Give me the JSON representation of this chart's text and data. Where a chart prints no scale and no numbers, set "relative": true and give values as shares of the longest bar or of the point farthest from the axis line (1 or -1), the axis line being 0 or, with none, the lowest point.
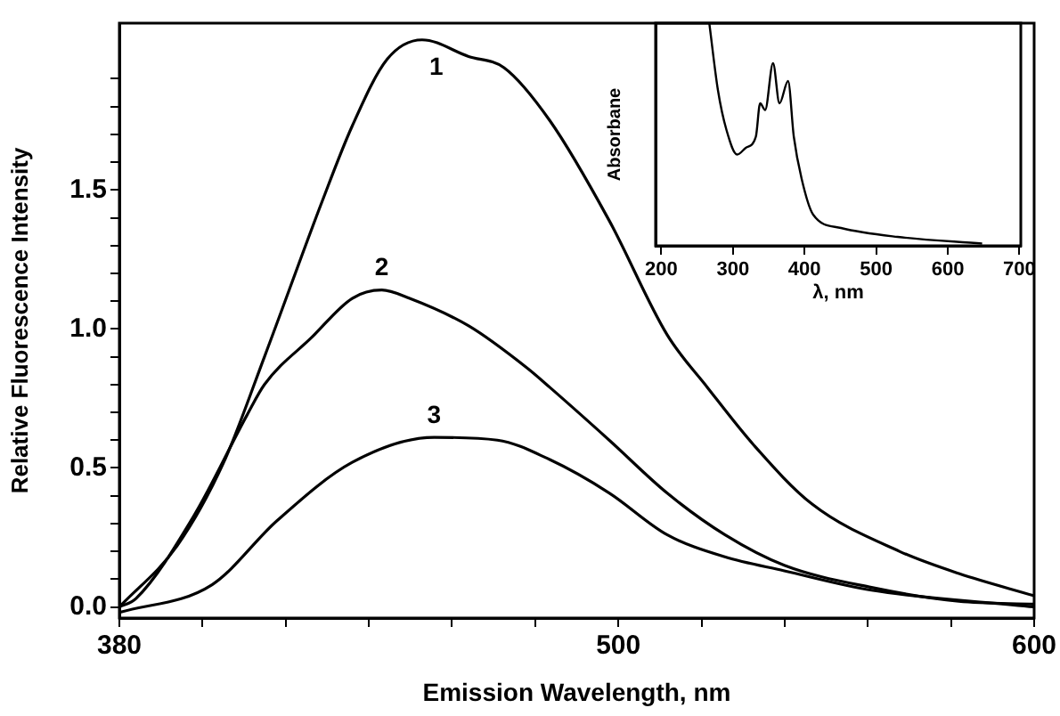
{
  "chart_data": [
    {
      "type": "line",
      "xlabel": "Emission Wavelength, nm",
      "ylabel": "Relative Fluorescence Intensity",
      "xlim": [
        380,
        600
      ],
      "ylim": [
        -0.04,
        2.1
      ],
      "xticks": [
        380,
        {
          "value": 400,
          "label": null
        },
        {
          "value": 420,
          "label": null
        },
        {
          "value": 440,
          "label": null
        },
        {
          "value": 460,
          "label": null
        },
        {
          "value": 480,
          "label": null
        },
        500,
        {
          "value": 520,
          "label": null
        },
        {
          "value": 540,
          "label": null
        },
        {
          "value": 560,
          "label": null
        },
        {
          "value": 580,
          "label": null
        },
        600
      ],
      "yticks": [
        {
          "value": 0,
          "label": "0.0"
        },
        {
          "value": 0.1,
          "label": null
        },
        {
          "value": 0.2,
          "label": null
        },
        {
          "value": 0.3,
          "label": null
        },
        {
          "value": 0.4,
          "label": null
        },
        0.5,
        {
          "value": 0.6,
          "label": null
        },
        {
          "value": 0.7,
          "label": null
        },
        {
          "value": 0.8,
          "label": null
        },
        {
          "value": 0.9,
          "label": null
        },
        {
          "value": 1,
          "label": "1.0"
        },
        {
          "value": 1.1,
          "label": null
        },
        {
          "value": 1.2,
          "label": null
        },
        {
          "value": 1.3,
          "label": null
        },
        {
          "value": 1.4,
          "label": null
        },
        1.5,
        {
          "value": 1.6,
          "label": null
        },
        {
          "value": 1.7,
          "label": null
        },
        {
          "value": 1.8,
          "label": null
        },
        {
          "value": 1.9,
          "label": null
        }
      ],
      "series": [
        {
          "name": "1",
          "color": "#000000",
          "x": [
            380,
            393.9,
            405.1,
            414.9,
            428.8,
            436,
            444.4,
            452.8,
            464,
            472.5,
            483.5,
            497.8,
            511.7,
            521.4,
            532.7,
            546.6,
            567.6,
            581.9,
            600
          ],
          "values": [
            0,
            0.22,
            0.52,
            0.9,
            1.46,
            1.73,
            1.97,
            2.04,
            1.98,
            1.94,
            1.75,
            1.39,
            0.98,
            0.79,
            0.58,
            0.37,
            0.2,
            0.12,
            0.04
          ]
        },
        {
          "name": "2",
          "color": "#000000",
          "x": [
            380,
            384,
            398,
            410.7,
            414.9,
            426.3,
            436,
            443.1,
            449.8,
            464.1,
            478,
            483.5,
            497.8,
            511.7,
            525.6,
            539.9,
            560.9,
            581.9,
            600
          ],
          "values": [
            0,
            0.03,
            0.33,
            0.69,
            0.8,
            0.97,
            1.11,
            1.14,
            1.11,
            1.01,
            0.86,
            0.79,
            0.6,
            0.41,
            0.26,
            0.15,
            0.07,
            0.02,
            0.01
          ]
        },
        {
          "name": "3",
          "color": "#000000",
          "x": [
            380,
            402.3,
            417.9,
            436,
            455.7,
            470.9,
            483.5,
            497.8,
            511.7,
            525.6,
            539.9,
            560.9,
            600
          ],
          "values": [
            -0.02,
            0.08,
            0.31,
            0.52,
            0.61,
            0.6,
            0.53,
            0.41,
            0.26,
            0.18,
            0.13,
            0.06,
            0
          ]
        }
      ]
    },
    {
      "type": "line",
      "xlabel": "λ, nm",
      "ylabel": "Absorbane",
      "relative": true,
      "xlim": [
        192,
        702
      ],
      "xticks": [
        200,
        300,
        400,
        500,
        600,
        700
      ],
      "series": [
        {
          "color": "#000000",
          "x": [
            267,
            279,
            291,
            306,
            318,
            332,
            338,
            345,
            356,
            365,
            377,
            385,
            396,
            412,
            451,
            530,
            648
          ],
          "values": [
            1,
            0.7,
            0.52,
            0.41,
            0.44,
            0.49,
            0.64,
            0.61,
            0.82,
            0.64,
            0.74,
            0.49,
            0.3,
            0.14,
            0.08,
            0.04,
            0.01
          ]
        }
      ]
    }
  ]
}
